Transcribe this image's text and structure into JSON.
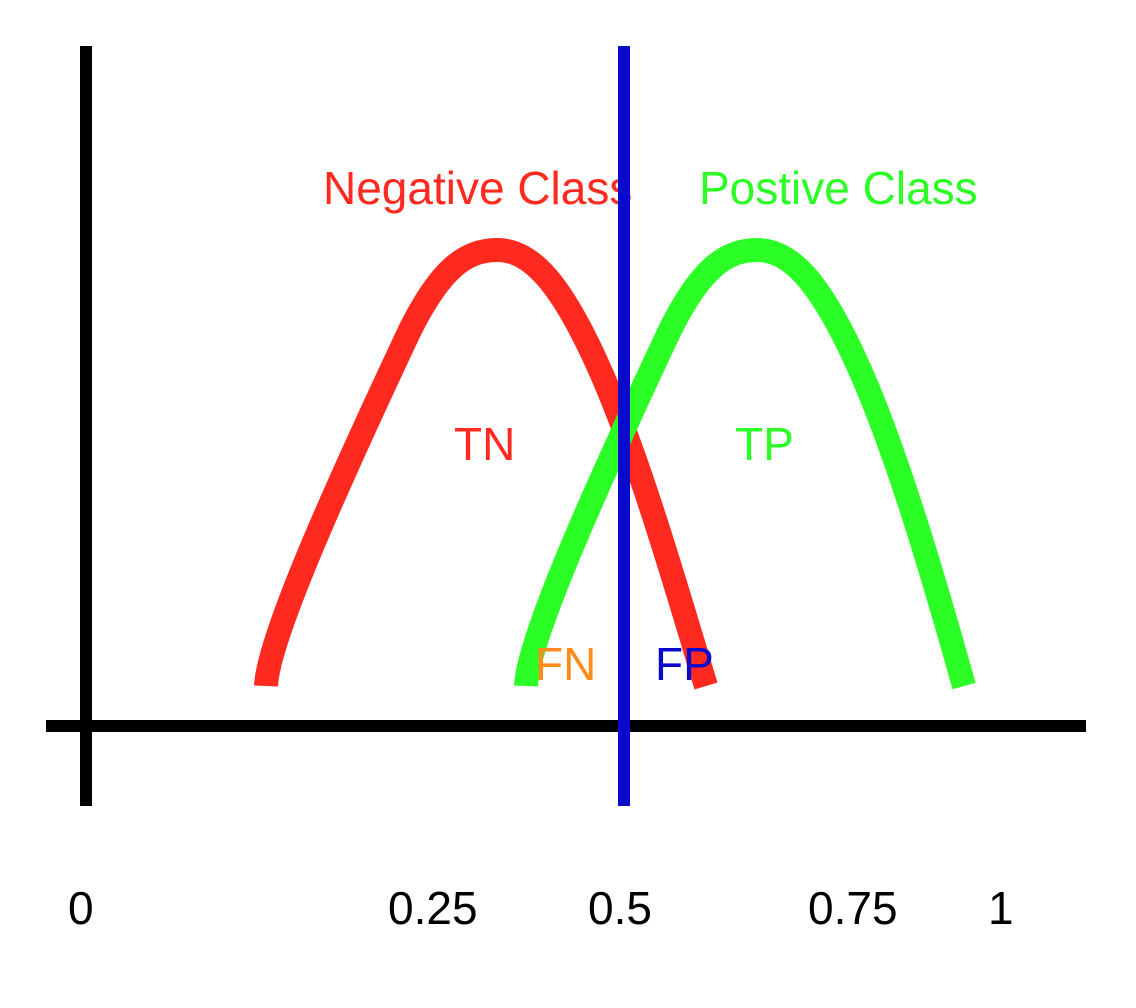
{
  "colors": {
    "negative": "#ff2a1f",
    "positive": "#2bff25",
    "threshold": "#0a0acc",
    "false_negative": "#ff8c1a",
    "false_positive": "#0a0acc",
    "axis": "#000000"
  },
  "labels": {
    "negative_class": "Negative Class",
    "positive_class": "Postive Class",
    "tn": "TN",
    "tp": "TP",
    "fn": "FN",
    "fp": "FP"
  },
  "x_ticks": [
    "0",
    "0.25",
    "0.5",
    "0.75",
    "1"
  ],
  "threshold_value": 0.5
}
